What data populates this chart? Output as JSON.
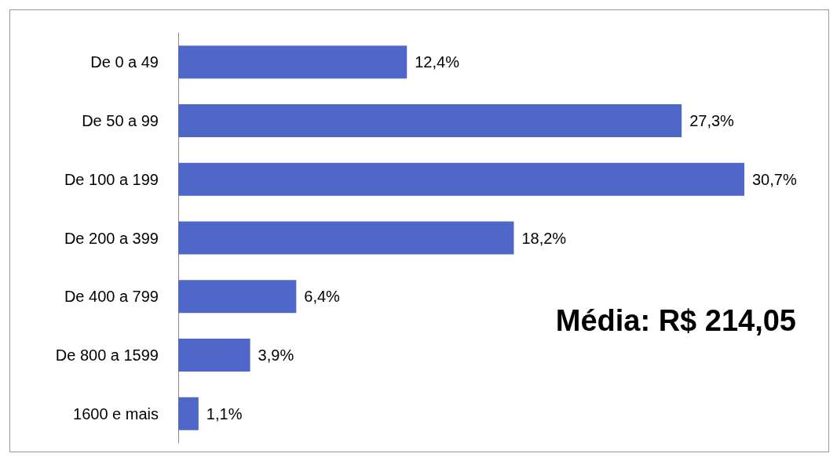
{
  "chart_data": {
    "type": "bar",
    "orientation": "horizontal",
    "categories": [
      "De 0 a 49",
      "De 50 a 99",
      "De 100 a 199",
      "De 200 a 399",
      "De 400 a 799",
      "De 800 a 1599",
      "1600 e mais"
    ],
    "values": [
      12.4,
      27.3,
      30.7,
      18.2,
      6.4,
      3.9,
      1.1
    ],
    "value_labels": [
      "12,4%",
      "27,3%",
      "30,7%",
      "18,2%",
      "6,4%",
      "3,9%",
      "1,1%"
    ],
    "color": "#4f67c8",
    "annotations": [
      "Média: R$ 214,05"
    ]
  }
}
